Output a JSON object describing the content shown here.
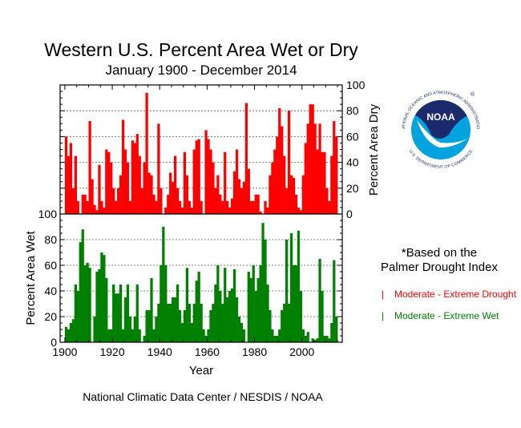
{
  "chart_data": {
    "type": "bar",
    "title": "Western U.S. Percent Area Wet or Dry",
    "subtitle": "January 1900 - December 2014",
    "xlabel": "Year",
    "xlim": [
      1898,
      2017
    ],
    "xticks": [
      1900,
      1920,
      1940,
      1960,
      1980,
      2000
    ],
    "grid": true,
    "panels": {
      "dry": {
        "ylabel": "Percent Area Dry",
        "ylim": [
          0,
          100
        ],
        "yticks": [
          0,
          20,
          40,
          60,
          80,
          100
        ],
        "axis_side": "right"
      },
      "wet": {
        "ylabel": "Percent Area Wet",
        "ylim": [
          0,
          100
        ],
        "yticks": [
          0,
          20,
          40,
          60,
          80,
          100
        ],
        "axis_side": "left"
      }
    },
    "x_start_year": 1900,
    "series": [
      {
        "name": "Moderate - Extreme Drought",
        "color": "#ff0000",
        "panel": "dry",
        "values": [
          60,
          45,
          55,
          20,
          45,
          10,
          0,
          15,
          15,
          10,
          72,
          27,
          7,
          3,
          38,
          10,
          5,
          50,
          48,
          40,
          20,
          10,
          20,
          30,
          73,
          50,
          40,
          10,
          57,
          55,
          62,
          45,
          20,
          40,
          94,
          32,
          30,
          15,
          10,
          70,
          20,
          0,
          5,
          15,
          32,
          25,
          45,
          20,
          10,
          5,
          48,
          30,
          10,
          5,
          50,
          57,
          58,
          10,
          0,
          65,
          58,
          50,
          40,
          20,
          30,
          15,
          10,
          48,
          10,
          5,
          12,
          33,
          50,
          27,
          20,
          25,
          86,
          35,
          10,
          10,
          15,
          15,
          2,
          0,
          10,
          5,
          30,
          40,
          50,
          60,
          82,
          68,
          45,
          20,
          80,
          30,
          28,
          15,
          5,
          3,
          30,
          55,
          70,
          85,
          85,
          70,
          50,
          70,
          48,
          48,
          20,
          10,
          45,
          72,
          60
        ]
      },
      {
        "name": "Moderate - Extreme Wet",
        "color": "#008000",
        "panel": "wet",
        "values": [
          12,
          10,
          15,
          18,
          45,
          40,
          78,
          88,
          60,
          62,
          58,
          0,
          20,
          55,
          57,
          70,
          68,
          50,
          10,
          10,
          45,
          38,
          38,
          45,
          10,
          35,
          45,
          20,
          10,
          20,
          45,
          10,
          0,
          5,
          25,
          25,
          50,
          10,
          20,
          30,
          60,
          90,
          60,
          30,
          30,
          35,
          35,
          45,
          25,
          15,
          25,
          58,
          30,
          15,
          30,
          48,
          55,
          30,
          10,
          5,
          10,
          25,
          30,
          45,
          60,
          40,
          30,
          58,
          35,
          40,
          42,
          57,
          35,
          20,
          15,
          10,
          0,
          55,
          50,
          60,
          40,
          50,
          60,
          93,
          80,
          45,
          25,
          10,
          5,
          5,
          10,
          25,
          30,
          80,
          30,
          85,
          60,
          60,
          87,
          40,
          10,
          5,
          8,
          0,
          3,
          2,
          3,
          65,
          40,
          5,
          5,
          3,
          15,
          64,
          20
        ]
      }
    ]
  },
  "legend": {
    "note_line1": "*Based on the",
    "note_line2": "Palmer Drought Index",
    "marker": "|",
    "drought_label": "Moderate - Extreme Drought",
    "wet_label": "Moderate - Extreme Wet"
  },
  "logo": {
    "text": "NOAA",
    "ring_top": "NATIONAL OCEANIC AND ATMOSPHERIC ADMINISTRATION",
    "ring_bottom": "U.S. DEPARTMENT OF COMMERCE",
    "colors": {
      "navy": "#1a2a6c",
      "blue": "#00a3dd"
    }
  },
  "footer": "National Climatic Data Center / NESDIS / NOAA"
}
